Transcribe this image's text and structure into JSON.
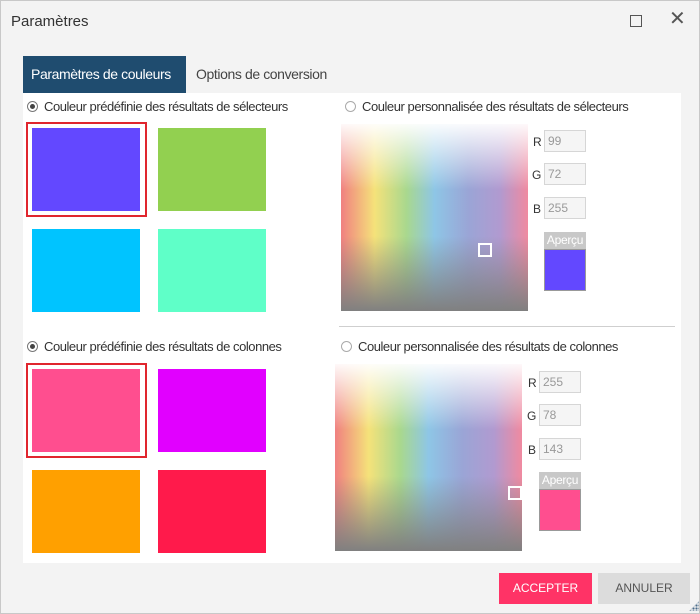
{
  "window": {
    "title": "Paramètres"
  },
  "tabs": [
    {
      "label": "Paramètres de couleurs",
      "active": true
    },
    {
      "label": "Options de conversion",
      "active": false
    }
  ],
  "selectors": {
    "predefined_label": "Couleur prédéfinie des résultats de sélecteurs",
    "predefined_checked": true,
    "custom_label": "Couleur personnalisée des résultats de sélecteurs",
    "custom_checked": false,
    "swatches": [
      "#6348ff",
      "#92d050",
      "#00c4ff",
      "#5fffc8"
    ],
    "selected_swatch": 0,
    "r_label": "R",
    "g_label": "G",
    "b_label": "B",
    "r": "99",
    "g": "72",
    "b": "255",
    "preview_label": "Aperçu",
    "preview_color": "#6348ff"
  },
  "columns": {
    "predefined_label": "Couleur prédéfinie des résultats de colonnes",
    "predefined_checked": true,
    "custom_label": "Couleur personnalisée des résultats de colonnes",
    "custom_checked": false,
    "swatches": [
      "#ff4e8f",
      "#e100ff",
      "#ffa000",
      "#ff1a4b"
    ],
    "selected_swatch": 0,
    "r_label": "R",
    "g_label": "G",
    "b_label": "B",
    "r": "255",
    "g": "78",
    "b": "143",
    "preview_label": "Aperçu",
    "preview_color": "#ff4e8f"
  },
  "buttons": {
    "accept": "ACCEPTER",
    "cancel": "ANNULER"
  },
  "colors": {
    "accent": "#ff3366",
    "tab_active": "#1f4c6f"
  }
}
